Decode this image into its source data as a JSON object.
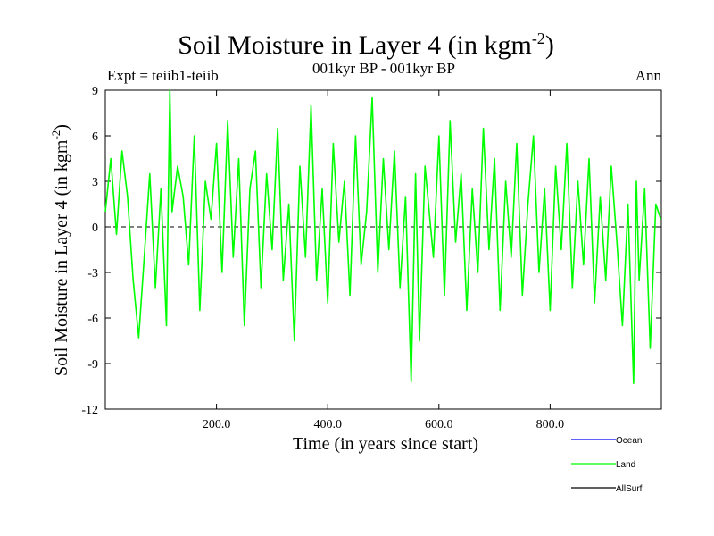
{
  "chart_data": {
    "type": "line",
    "title": "Soil Moisture in Layer 4 (in kgm",
    "title_sup": "-2",
    "title_close": ")",
    "subtitle": "001kyr BP - 001kyr BP",
    "left_label": "Expt = teiib1-teiib",
    "right_label": "Ann",
    "xlabel": "Time (in years since start)",
    "ylabel": "Soil Moisture in Layer 4 (in kgm",
    "ylabel_sup": "-2",
    "ylabel_close": ")",
    "xlim": [
      0,
      1000
    ],
    "ylim": [
      -12,
      9
    ],
    "xticks": [
      200,
      400,
      600,
      800
    ],
    "xtick_labels": [
      "200.0",
      "400.0",
      "600.0",
      "800.0"
    ],
    "yticks": [
      9,
      6,
      3,
      0,
      -3,
      -6,
      -9,
      -12
    ],
    "ytick_labels": [
      "9",
      "6",
      "3",
      "0",
      "-3",
      "-6",
      "-9",
      "-12"
    ],
    "zero_line": true,
    "legend_position": "bottom-right",
    "series": [
      {
        "name": "Ocean",
        "color": "#0000ff",
        "values": []
      },
      {
        "name": "Land",
        "color": "#00ff00",
        "x": [
          0,
          10,
          20,
          30,
          40,
          50,
          60,
          70,
          80,
          90,
          100,
          110,
          116,
          120,
          130,
          140,
          150,
          160,
          170,
          180,
          190,
          200,
          210,
          220,
          230,
          240,
          250,
          260,
          270,
          280,
          290,
          300,
          310,
          320,
          330,
          340,
          350,
          360,
          370,
          380,
          390,
          400,
          410,
          420,
          430,
          440,
          450,
          460,
          470,
          480,
          490,
          500,
          510,
          520,
          530,
          540,
          550,
          558,
          565,
          575,
          590,
          600,
          610,
          620,
          630,
          640,
          650,
          660,
          670,
          680,
          690,
          700,
          710,
          720,
          730,
          740,
          750,
          760,
          770,
          780,
          790,
          800,
          810,
          820,
          830,
          840,
          850,
          860,
          870,
          880,
          890,
          900,
          910,
          920,
          930,
          940,
          950,
          955,
          960,
          970,
          980,
          990,
          999
        ],
        "values": [
          1.0,
          4.5,
          -0.5,
          5.0,
          2.0,
          -3.5,
          -7.3,
          -2.0,
          3.5,
          -4.0,
          2.5,
          -6.5,
          9.0,
          1.0,
          4.0,
          2.0,
          -2.5,
          6.0,
          -5.5,
          3.0,
          0.5,
          5.5,
          -3.0,
          7.0,
          -2.0,
          4.5,
          -6.5,
          2.5,
          5.0,
          -4.0,
          3.5,
          -1.5,
          6.5,
          -3.5,
          1.5,
          -7.5,
          4.0,
          -2.0,
          8.0,
          -3.5,
          2.5,
          -5.0,
          5.5,
          -1.0,
          3.0,
          -4.5,
          6.0,
          -2.5,
          1.0,
          8.5,
          -3.0,
          4.5,
          -1.5,
          5.0,
          -4.0,
          2.0,
          -10.2,
          3.5,
          -7.5,
          4.0,
          -2.0,
          6.0,
          -4.5,
          7.0,
          -1.0,
          3.5,
          -5.5,
          2.5,
          -3.0,
          6.5,
          -1.5,
          4.5,
          -5.5,
          3.0,
          -2.0,
          5.5,
          -4.5,
          1.5,
          6.0,
          -3.0,
          2.5,
          -5.5,
          4.0,
          -1.5,
          5.5,
          -4.0,
          3.0,
          -2.5,
          4.5,
          -5.0,
          2.0,
          -3.5,
          4.0,
          -1.0,
          -6.5,
          1.5,
          -10.3,
          3.0,
          -3.5,
          2.5,
          -8.0,
          1.5,
          0.5
        ]
      },
      {
        "name": "AllSurf",
        "color": "#000000",
        "values": []
      }
    ]
  }
}
